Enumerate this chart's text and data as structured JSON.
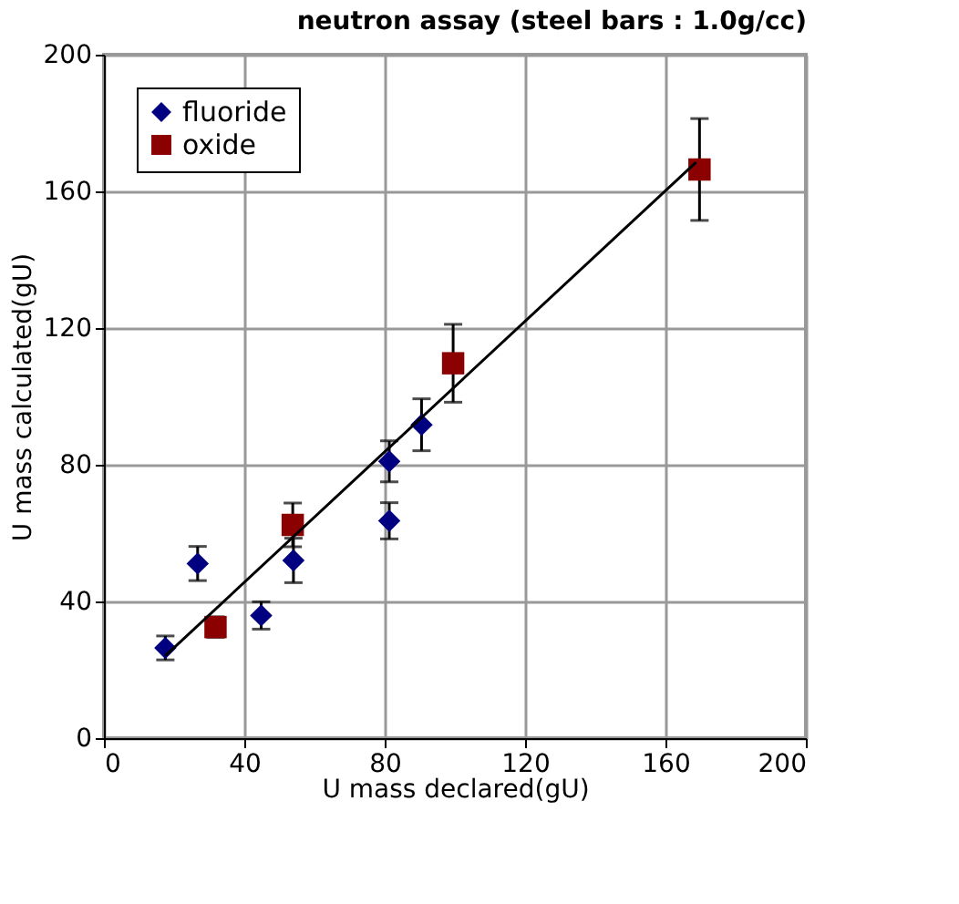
{
  "chart_data": {
    "type": "scatter",
    "title": "neutron assay (steel bars : 1.0g/cc)",
    "xlabel": "U mass declared(gU)",
    "ylabel": "U mass calculated(gU)",
    "xlim": [
      0,
      200
    ],
    "ylim": [
      0,
      200
    ],
    "xticks": [
      0,
      40,
      80,
      120,
      160,
      200
    ],
    "yticks": [
      0,
      40,
      80,
      120,
      160,
      200
    ],
    "grid": true,
    "legend": "top left",
    "series": [
      {
        "name": "fluoride",
        "color": "#000080",
        "marker": "diamond",
        "x": [
          17.5,
          26.7,
          44.8,
          54,
          81.3,
          81.3,
          90.5
        ],
        "values": [
          26.4,
          51.1,
          35.9,
          52,
          81,
          63.6,
          91.7
        ],
        "errors": [
          3.5,
          5,
          4,
          6.5,
          6,
          5.3,
          7.6
        ]
      },
      {
        "name": "oxide",
        "color": "#8b0000",
        "marker": "square",
        "x": [
          31.8,
          53.8,
          99.5,
          169.7
        ],
        "values": [
          32.5,
          62.4,
          109.7,
          166.4
        ],
        "errors": [
          3,
          6.4,
          11.4,
          14.9
        ]
      },
      {
        "type": "line",
        "color": "#000000",
        "marker": "none",
        "x": [
          17.5,
          168.7
        ],
        "values": [
          24.1,
          168.5
        ]
      }
    ]
  }
}
